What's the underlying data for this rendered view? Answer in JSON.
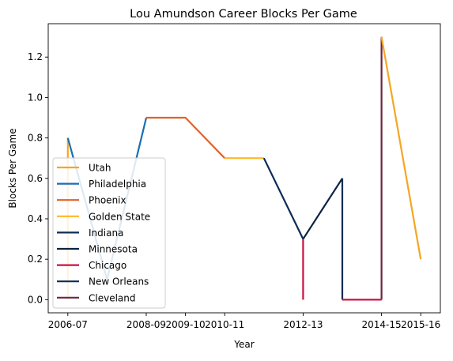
{
  "chart_data": {
    "type": "line",
    "title": "Lou Amundson Career Blocks Per Game",
    "xlabel": "Year",
    "ylabel": "Blocks Per Game",
    "x_tick_labels": [
      "2006-07",
      "2008-09",
      "2009-10",
      "2010-11",
      "2012-13",
      "2014-15",
      "2015-16"
    ],
    "y_tick_labels": [
      "0.0",
      "0.2",
      "0.4",
      "0.6",
      "0.8",
      "1.0",
      "1.2"
    ],
    "y_ticks": [
      0.0,
      0.2,
      0.4,
      0.6,
      0.8,
      1.0,
      1.2
    ],
    "ylim": [
      -0.065,
      1.365
    ],
    "legend_position": "lower-left",
    "grid": false,
    "series": [
      {
        "name": "Utah",
        "color": "#f5a623",
        "points": [
          {
            "x": "2006-07",
            "y": 0.8
          },
          {
            "x": "2006-07",
            "y": 0.0
          }
        ]
      },
      {
        "name": "Philadelphia",
        "color": "#1a6eb3",
        "points": [
          {
            "x": "2006-07",
            "y": 0.8
          },
          {
            "x": "2007-08",
            "y": 0.1
          },
          {
            "x": "2008-09",
            "y": 0.9
          }
        ]
      },
      {
        "name": "Phoenix",
        "color": "#e1622a",
        "points": [
          {
            "x": "2008-09",
            "y": 0.9
          },
          {
            "x": "2009-10",
            "y": 0.9
          },
          {
            "x": "2010-11",
            "y": 0.7
          }
        ]
      },
      {
        "name": "Golden State",
        "color": "#fdb927",
        "points": [
          {
            "x": "2010-11",
            "y": 0.7
          },
          {
            "x": "2011-12",
            "y": 0.7
          }
        ]
      },
      {
        "name": "Indiana",
        "color": "#0c2c56",
        "points": [
          {
            "x": "2011-12",
            "y": 0.7
          },
          {
            "x": "2012-13",
            "y": 0.3
          }
        ]
      },
      {
        "name": "Minnesota",
        "color": "#0c2340",
        "points": [
          {
            "x": "2012-13",
            "y": 0.3
          },
          {
            "x": "2013-14",
            "y": 0.6
          }
        ]
      },
      {
        "name": "Chicago",
        "color": "#ce1141",
        "points": [
          {
            "x": "2012-13",
            "y": 0.3
          },
          {
            "x": "2012-13",
            "y": 0.0
          }
        ]
      },
      {
        "name": "New Orleans",
        "color": "#0c2c56",
        "points": [
          {
            "x": "2013-14",
            "y": 0.6
          },
          {
            "x": "2013-14",
            "y": 0.0
          }
        ]
      },
      {
        "name": "Chicago",
        "color": "#ce1141",
        "points": [
          {
            "x": "2013-14",
            "y": 0.0
          },
          {
            "x": "2014-15",
            "y": 0.0
          }
        ]
      },
      {
        "name": "Cleveland",
        "color": "#6f263d",
        "points": [
          {
            "x": "2014-15",
            "y": 0.0
          },
          {
            "x": "2014-15",
            "y": 1.3
          }
        ]
      },
      {
        "name": "Utah",
        "color": "#f5a623",
        "points": [
          {
            "x": "2014-15",
            "y": 1.3
          },
          {
            "x": "2015-16",
            "y": 0.2
          }
        ]
      }
    ],
    "legend": [
      {
        "name": "Utah",
        "color": "#f5a623"
      },
      {
        "name": "Philadelphia",
        "color": "#1a6eb3"
      },
      {
        "name": "Phoenix",
        "color": "#e1622a"
      },
      {
        "name": "Golden State",
        "color": "#fdb927"
      },
      {
        "name": "Indiana",
        "color": "#0c2c56"
      },
      {
        "name": "Minnesota",
        "color": "#0c2340"
      },
      {
        "name": "Chicago",
        "color": "#ce1141"
      },
      {
        "name": "New Orleans",
        "color": "#0c2c56"
      },
      {
        "name": "Cleveland",
        "color": "#6f263d"
      }
    ]
  }
}
